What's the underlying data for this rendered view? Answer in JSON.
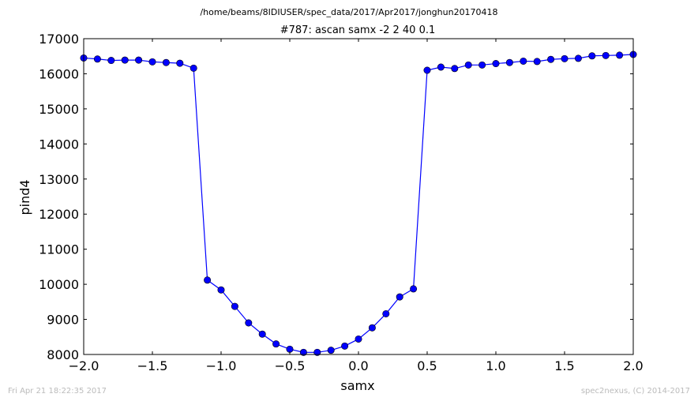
{
  "header": {
    "path": "/home/beams/8IDIUSER/spec_data/2017/Apr2017/jonghun20170418"
  },
  "footer": {
    "timestamp": "Fri Apr 21 18:22:35 2017",
    "credit": "spec2nexus, (C) 2014-2017"
  },
  "colors": {
    "series": "#0000ff",
    "axis": "#000000",
    "footer_text": "#bbbbbb"
  },
  "chart_data": {
    "type": "line",
    "title": "#787: ascan  samx -2 2  40 0.1",
    "xlabel": "samx",
    "ylabel": "pind4",
    "xlim": [
      -2.0,
      2.0
    ],
    "ylim": [
      8000,
      17000
    ],
    "xticks": [
      -2.0,
      -1.5,
      -1.0,
      -0.5,
      0.0,
      0.5,
      1.0,
      1.5,
      2.0
    ],
    "xtick_labels": [
      "−2.0",
      "−1.5",
      "−1.0",
      "−0.5",
      "0.0",
      "0.5",
      "1.0",
      "1.5",
      "2.0"
    ],
    "yticks": [
      8000,
      9000,
      10000,
      11000,
      12000,
      13000,
      14000,
      15000,
      16000,
      17000
    ],
    "ytick_labels": [
      "8000",
      "9000",
      "10000",
      "11000",
      "12000",
      "13000",
      "14000",
      "15000",
      "16000",
      "17000"
    ],
    "grid": false,
    "marker": "circle",
    "series": [
      {
        "x": [
          -2.0,
          -1.9,
          -1.8,
          -1.7,
          -1.6,
          -1.5,
          -1.4,
          -1.3,
          -1.2,
          -1.1,
          -1.0,
          -0.9,
          -0.8,
          -0.7,
          -0.6,
          -0.5,
          -0.4,
          -0.3,
          -0.2,
          -0.1,
          0.0,
          0.1,
          0.2,
          0.3,
          0.4,
          0.5,
          0.6,
          0.7,
          0.8,
          0.9,
          1.0,
          1.1,
          1.2,
          1.3,
          1.4,
          1.5,
          1.6,
          1.7,
          1.8,
          1.9,
          2.0
        ],
        "y": [
          16450,
          16420,
          16380,
          16390,
          16390,
          16340,
          16320,
          16300,
          16160,
          10120,
          9840,
          9370,
          8900,
          8580,
          8300,
          8150,
          8060,
          8060,
          8120,
          8240,
          8440,
          8760,
          9160,
          9640,
          9870,
          16100,
          16190,
          16150,
          16250,
          16250,
          16290,
          16320,
          16360,
          16350,
          16410,
          16430,
          16440,
          16510,
          16520,
          16530,
          16550
        ]
      }
    ]
  }
}
